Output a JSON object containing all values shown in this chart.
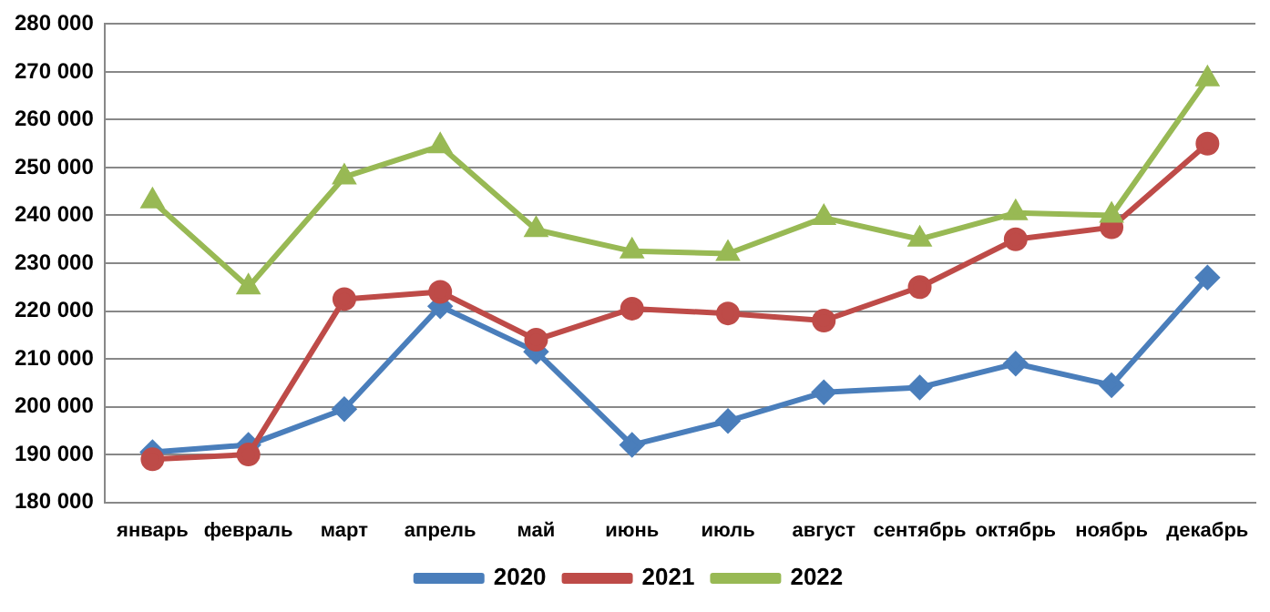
{
  "chart_data": {
    "type": "line",
    "categories": [
      "январь",
      "февраль",
      "март",
      "апрель",
      "май",
      "июнь",
      "июль",
      "август",
      "сентябрь",
      "октябрь",
      "ноябрь",
      "декабрь"
    ],
    "series": [
      {
        "name": "2020",
        "color": "#4a7ebb",
        "marker": "diamond",
        "values": [
          190500,
          192000,
          199500,
          221000,
          211500,
          192000,
          197000,
          203000,
          204000,
          209000,
          204500,
          227000
        ]
      },
      {
        "name": "2021",
        "color": "#be4b48",
        "marker": "circle",
        "values": [
          189000,
          190000,
          222500,
          224000,
          214000,
          220500,
          219500,
          218000,
          225000,
          235000,
          237500,
          255000
        ]
      },
      {
        "name": "2022",
        "color": "#98b954",
        "marker": "triangle",
        "values": [
          243000,
          225000,
          248000,
          254500,
          237000,
          232500,
          232000,
          239500,
          235000,
          240500,
          240000,
          268500
        ]
      }
    ],
    "ylim": [
      180000,
      280000
    ],
    "yticks": [
      {
        "value": 180000,
        "label": "180 000"
      },
      {
        "value": 190000,
        "label": "190 000"
      },
      {
        "value": 200000,
        "label": "200 000"
      },
      {
        "value": 210000,
        "label": "210 000"
      },
      {
        "value": 220000,
        "label": "220 000"
      },
      {
        "value": 230000,
        "label": "230 000"
      },
      {
        "value": 240000,
        "label": "240 000"
      },
      {
        "value": 250000,
        "label": "250 000"
      },
      {
        "value": 260000,
        "label": "260 000"
      },
      {
        "value": 270000,
        "label": "270 000"
      },
      {
        "value": 280000,
        "label": "280 000"
      }
    ],
    "grid": "y",
    "legend": "bottom",
    "line_style": "solid"
  }
}
